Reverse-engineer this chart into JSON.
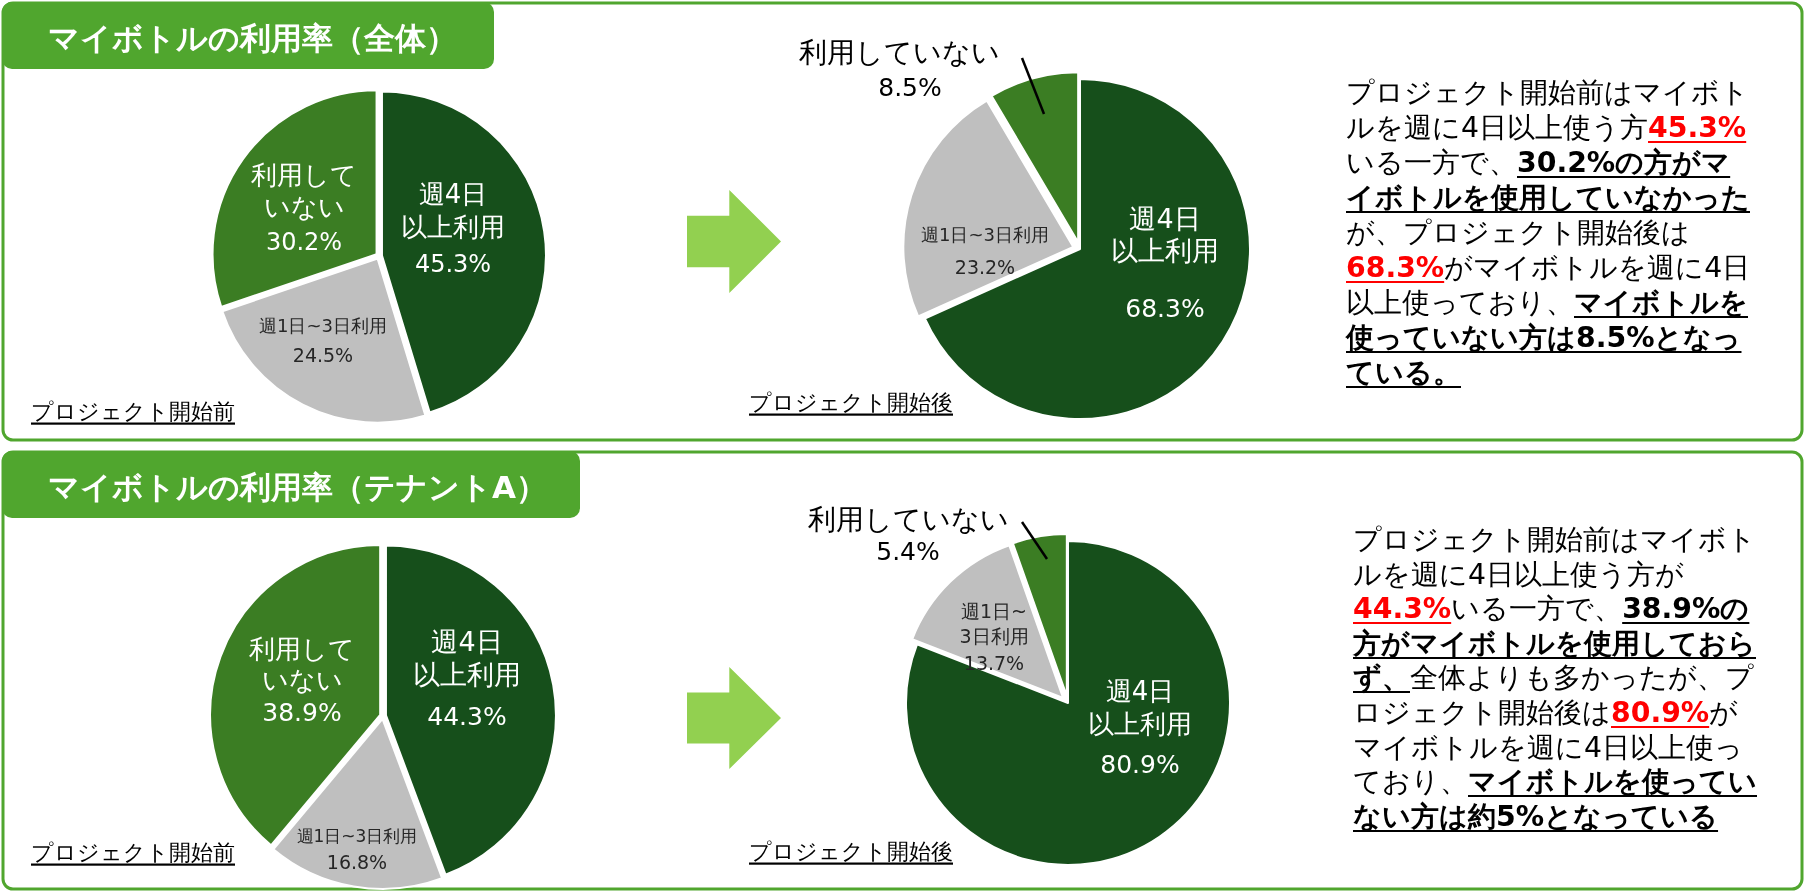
{
  "chart_data": [
    {
      "type": "pie",
      "title": "マイボトルの利用率（全体）",
      "categories": [
        "週4日以上利用",
        "週1日~3日利用",
        "利用していない"
      ],
      "values": [
        45.3,
        24.5,
        30.2
      ],
      "colors": [
        "#164f1b",
        "#bfbfbf",
        "#3b7d23"
      ],
      "value_labels": [
        "45.3%",
        "24.5%",
        "30.2%"
      ],
      "annotations": [
        "プロジェクト開始前"
      ]
    },
    {
      "type": "pie",
      "categories": [
        "週4日以上利用",
        "週1日~3日利用",
        "利用していない"
      ],
      "values": [
        68.3,
        23.2,
        8.5
      ],
      "colors": [
        "#164f1b",
        "#bfbfbf",
        "#3b7d23"
      ],
      "value_labels": [
        "68.3%",
        "23.2%",
        "8.5%"
      ],
      "annotations": [
        "プロジェクト開始後"
      ]
    },
    {
      "type": "other",
      "annotations": [
        "プロジェクト開始前はマイボト",
        "ルを週に4日以上使う方",
        "45.3%",
        "いる一方で、",
        "30.2%の方がマ",
        "イボトルを使用していなかった",
        "が、プロジェクト開始後は",
        "68.3%",
        "がマイボトルを週に4日",
        "以上使っており、",
        "マイボトルを",
        "使っていない方は8.5%となっ",
        "ている。"
      ],
      "colors": [
        null,
        null,
        "#ff0000",
        null,
        "#000000",
        "#000000",
        null,
        "#ff0000",
        null,
        null,
        "#000000",
        "#000000",
        "#000000"
      ]
    },
    {
      "type": "pie",
      "title": "マイボトルの利用率（テナントA）",
      "categories": [
        "週4日以上利用",
        "週1日~3日利用",
        "利用していない"
      ],
      "values": [
        44.3,
        16.8,
        38.9
      ],
      "colors": [
        "#164f1b",
        "#bfbfbf",
        "#3b7d23"
      ],
      "value_labels": [
        "44.3%",
        "16.8%",
        "38.9%"
      ],
      "annotations": [
        "プロジェクト開始前"
      ]
    },
    {
      "type": "pie",
      "categories": [
        "週4日以上利用",
        "週1日~3日利用",
        "利用していない"
      ],
      "values": [
        80.9,
        13.7,
        5.4
      ],
      "colors": [
        "#164f1b",
        "#bfbfbf",
        "#3b7d23"
      ],
      "value_labels": [
        "80.9%",
        "13.7%",
        "5.4%"
      ],
      "annotations": [
        "プロジェクト開始後"
      ]
    },
    {
      "type": "other",
      "annotations": [
        "プロジェクト開始前はマイボト",
        "ルを週に4日以上使う方が",
        "44.3%",
        "いる一方で、",
        "38.9%の",
        "方がマイボトルを使用しておら",
        "ず、",
        "全体よりも多かったが、プ",
        "ロジェクト開始後は",
        "80.9%",
        "が",
        "マイボトルを週に4日以上使っ",
        "ており、",
        "マイボトルを使ってい",
        "ない方は約5%となっている"
      ],
      "colors": [
        null,
        null,
        "#ff0000",
        null,
        "#000000",
        "#000000",
        "#000000",
        null,
        null,
        "#ff0000",
        null,
        null,
        null,
        "#000000",
        "#000000"
      ]
    }
  ]
}
